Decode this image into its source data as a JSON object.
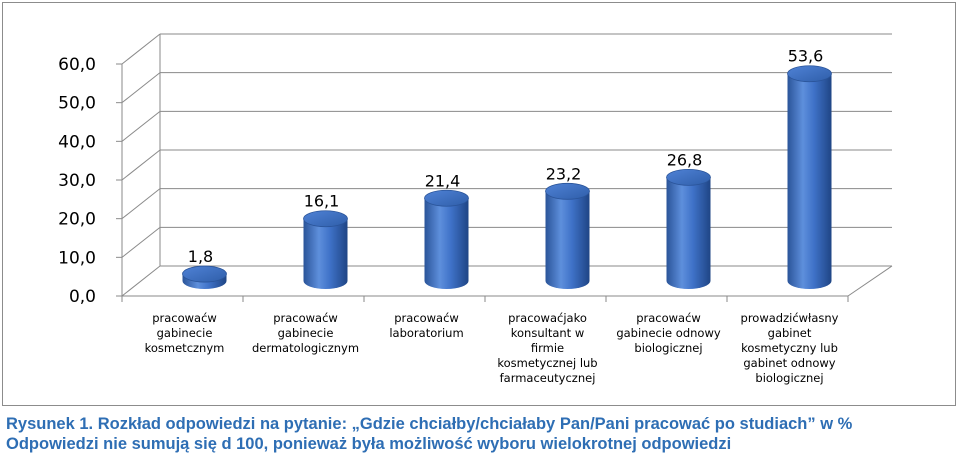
{
  "chart_data": {
    "type": "bar",
    "categories": [
      [
        "pracowaćw",
        "gabinecie",
        "kosmetcznym"
      ],
      [
        "pracowaćw",
        "gabinecie",
        "dermatologicznym"
      ],
      [
        "pracowaćw",
        "laboratorium"
      ],
      [
        "pracowaćjako",
        "konsultant w",
        "firmie",
        "kosmetycznej lub",
        "farmaceutycznej"
      ],
      [
        "pracowaćw",
        "gabinecie odnowy",
        "biologicznej"
      ],
      [
        "prowadzićwłasny",
        "gabinet",
        "kosmetyczny lub",
        "gabinet odnowy",
        "biologicznej"
      ]
    ],
    "values": [
      1.8,
      16.1,
      21.4,
      23.2,
      26.8,
      53.6
    ],
    "value_labels": [
      "1,8",
      "16,1",
      "21,4",
      "23,2",
      "26,8",
      "53,6"
    ],
    "y_ticks": [
      "0,0",
      "10,0",
      "20,0",
      "30,0",
      "40,0",
      "50,0",
      "60,0"
    ],
    "ylim": [
      0,
      60
    ],
    "grid": true,
    "bar_color": "#3a6fc4",
    "style": "3d-cylinder"
  },
  "caption": {
    "line1": "Rysunek 1.  Rozkład odpowiedzi na pytanie: „Gdzie chciałby/chciałaby Pan/Pani pracować po studiach” w %",
    "line2": "Odpowiedzi nie sumują się d 100, ponieważ była możliwość wyboru wielokrotnej odpowiedzi"
  }
}
